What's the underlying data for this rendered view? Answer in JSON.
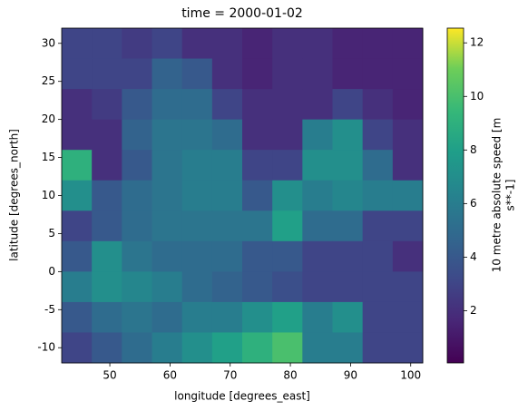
{
  "chart_data": {
    "type": "heatmap",
    "title": "time = 2000-01-02",
    "x_label": "longitude [degrees_east]",
    "y_label": "latitude [degrees_north]",
    "colorbar_label": [
      "10 metre absolute speed [m",
      "s**-1]"
    ],
    "x": [
      44.5,
      49.5,
      54.5,
      59.5,
      64.5,
      69.5,
      74.5,
      79.5,
      84.5,
      89.5,
      94.5,
      99.5
    ],
    "y": [
      30,
      26,
      22,
      18,
      14,
      10,
      6,
      2,
      -2,
      -6,
      -10
    ],
    "values": [
      [
        3,
        3,
        2.5,
        3,
        2,
        2,
        1.5,
        2,
        2,
        1.5,
        1.5,
        1.5
      ],
      [
        3,
        3,
        3,
        4.5,
        4,
        2,
        1.5,
        2,
        2,
        1.5,
        1.5,
        1.5
      ],
      [
        2,
        2.5,
        4,
        5,
        5,
        3,
        2,
        2,
        2,
        3,
        2,
        1.5
      ],
      [
        2,
        2,
        4.5,
        5.5,
        5.5,
        5,
        2,
        2,
        6,
        7,
        3,
        2
      ],
      [
        9,
        2,
        4,
        5.5,
        6,
        6,
        3,
        3,
        7,
        7,
        5,
        2
      ],
      [
        7,
        4,
        5,
        5.5,
        6,
        6,
        4,
        7,
        6,
        6.5,
        6,
        6
      ],
      [
        3,
        4,
        5,
        5.5,
        5.5,
        5.5,
        5.5,
        8,
        5,
        5,
        3,
        3
      ],
      [
        4,
        7,
        5.5,
        5,
        5,
        5,
        4,
        4,
        3,
        3,
        3,
        2
      ],
      [
        6,
        7,
        6.5,
        6,
        5,
        4.5,
        4,
        3.5,
        3,
        3,
        3,
        3
      ],
      [
        4,
        5,
        5.5,
        5,
        6,
        6,
        7,
        8,
        6,
        7,
        3,
        3
      ],
      [
        3,
        4,
        5,
        6,
        7,
        8,
        9,
        10,
        6,
        6,
        3,
        3
      ]
    ],
    "xlim": [
      42,
      102
    ],
    "xticks": [
      50,
      60,
      70,
      80,
      90,
      100
    ],
    "ylim": [
      -12,
      32
    ],
    "yticks": [
      -10,
      -5,
      0,
      5,
      10,
      15,
      20,
      25,
      30
    ],
    "clim": [
      0.05,
      12.55
    ],
    "cticks": [
      2,
      4,
      6,
      8,
      10,
      12
    ],
    "colormap": "viridis"
  }
}
